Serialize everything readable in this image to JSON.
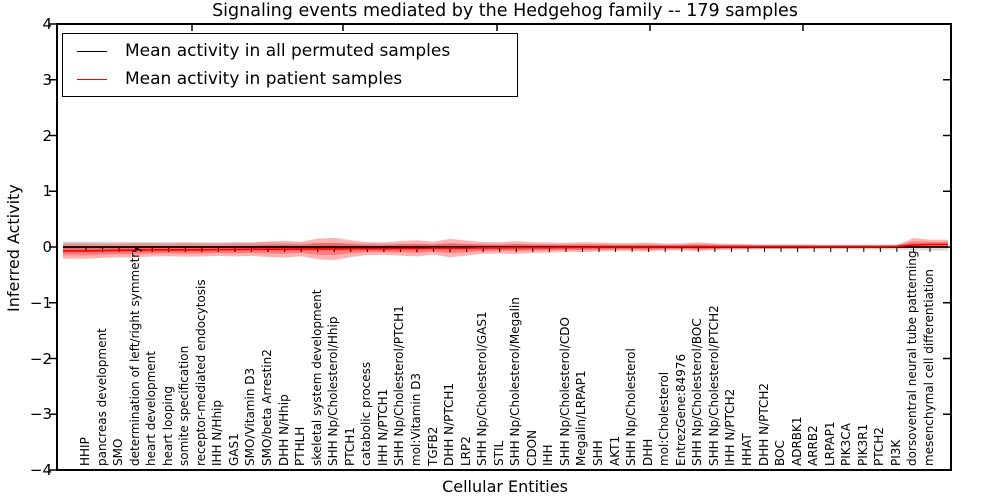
{
  "chart_data": {
    "type": "line",
    "title": "Signaling events mediated by the Hedgehog family -- 179 samples",
    "xlabel": "Cellular Entities",
    "ylabel": "Inferred Activity",
    "ylim": [
      -4,
      4
    ],
    "ytick_labels": [
      "4",
      "3",
      "2",
      "1",
      "0",
      "−1",
      "−2",
      "−3",
      "−4"
    ],
    "grid": false,
    "legend_position": "upper left",
    "sample_count": "179 samples",
    "categories": [
      "HHIP",
      "pancreas development",
      "SMO",
      "determination of left/right symmetry",
      "heart development",
      "heart looping",
      "somite specification",
      "receptor-mediated endocytosis",
      "IHH N/Hhip",
      "GAS1",
      "SMO/Vitamin D3",
      "SMO/beta Arrestin2",
      "DHH N/Hhip",
      "PTHLH",
      "skeletal system development",
      "SHH Np/Cholesterol/Hhip",
      "PTCH1",
      "catabolic process",
      "IHH N/PTCH1",
      "SHH Np/Cholesterol/PTCH1",
      "mol:Vitamin D3",
      "TGFB2",
      "DHH N/PTCH1",
      "LRP2",
      "SHH Np/Cholesterol/GAS1",
      "STIL",
      "SHH Np/Cholesterol/Megalin",
      "CDON",
      "IHH",
      "SHH Np/Cholesterol/CDO",
      "Megalin/LRPAP1",
      "SHH",
      "AKT1",
      "SHH Np/Cholesterol",
      "DHH",
      "mol:Cholesterol",
      "EntrezGene:84976",
      "SHH Np/Cholesterol/BOC",
      "SHH Np/Cholesterol/PTCH2",
      "IHH N/PTCH2",
      "HHAT",
      "DHH N/PTCH2",
      "BOC",
      "ADRBK1",
      "ARRB2",
      "LRPAP1",
      "PIK3CA",
      "PIK3R1",
      "PTCH2",
      "PI3K",
      "dorsoventral neural tube patterning",
      "mesenchymal cell differentiation"
    ],
    "series": [
      {
        "name": "Mean activity in all permuted samples",
        "color": "#000000",
        "values": [
          0,
          0,
          0,
          0,
          0,
          0,
          0,
          0,
          0,
          0,
          0,
          0,
          0,
          0,
          0,
          0,
          0,
          0,
          0,
          0,
          0,
          0,
          0,
          0,
          0,
          0,
          0,
          0,
          0,
          0,
          0,
          0,
          0,
          0,
          0,
          0,
          0,
          0,
          0,
          0,
          0,
          0,
          0,
          0,
          0,
          0,
          0,
          0,
          0,
          0,
          0,
          0
        ]
      },
      {
        "name": "Mean activity in patient samples",
        "color": "#ff0000",
        "values": [
          -0.07,
          -0.065,
          -0.06,
          -0.055,
          -0.05,
          -0.05,
          -0.05,
          -0.05,
          -0.045,
          -0.045,
          -0.04,
          -0.04,
          -0.04,
          -0.035,
          -0.035,
          -0.035,
          -0.03,
          -0.03,
          -0.03,
          -0.025,
          -0.025,
          -0.02,
          -0.02,
          -0.02,
          -0.015,
          -0.015,
          -0.01,
          -0.01,
          -0.01,
          -0.005,
          -0.005,
          0,
          0,
          0,
          0,
          0,
          0.005,
          0.005,
          0.005,
          0.005,
          0.005,
          0.005,
          0.005,
          0.005,
          0.005,
          0.005,
          0.005,
          0.005,
          0.005,
          0.01,
          0.035,
          0.045
        ]
      }
    ],
    "bands": [
      {
        "name": "permuted samples range",
        "color": "rgba(0,0,0,0.14)",
        "upper": [
          0.1,
          0.098,
          0.096,
          0.094,
          0.092,
          0.09,
          0.088,
          0.086,
          0.084,
          0.082,
          0.08,
          0.078,
          0.076,
          0.074,
          0.072,
          0.07,
          0.068,
          0.066,
          0.064,
          0.062,
          0.06,
          0.058,
          0.057,
          0.056,
          0.055,
          0.054,
          0.053,
          0.052,
          0.051,
          0.05,
          0.049,
          0.048,
          0.047,
          0.046,
          0.045,
          0.044,
          0.043,
          0.043,
          0.042,
          0.042,
          0.041,
          0.041,
          0.04,
          0.04,
          0.04,
          0.04,
          0.042,
          0.044,
          0.046,
          0.05,
          0.055,
          0.065
        ],
        "lower": [
          -0.1,
          -0.098,
          -0.096,
          -0.094,
          -0.092,
          -0.09,
          -0.088,
          -0.086,
          -0.084,
          -0.082,
          -0.08,
          -0.078,
          -0.076,
          -0.074,
          -0.072,
          -0.07,
          -0.068,
          -0.066,
          -0.064,
          -0.062,
          -0.06,
          -0.058,
          -0.057,
          -0.056,
          -0.055,
          -0.054,
          -0.053,
          -0.052,
          -0.051,
          -0.05,
          -0.049,
          -0.048,
          -0.047,
          -0.046,
          -0.045,
          -0.044,
          -0.043,
          -0.043,
          -0.042,
          -0.042,
          -0.041,
          -0.041,
          -0.04,
          -0.04,
          -0.04,
          -0.04,
          -0.042,
          -0.044,
          -0.046,
          -0.05,
          -0.055,
          -0.065
        ]
      },
      {
        "name": "patient samples range",
        "color": "rgba(255,0,0,0.30)",
        "upper": [
          0.07,
          0.065,
          0.065,
          0.075,
          0.07,
          0.065,
          0.075,
          0.07,
          0.07,
          0.08,
          0.08,
          0.1,
          0.11,
          0.095,
          0.15,
          0.165,
          0.12,
          0.085,
          0.08,
          0.105,
          0.12,
          0.095,
          0.145,
          0.115,
          0.09,
          0.085,
          0.105,
          0.085,
          0.08,
          0.075,
          0.085,
          0.08,
          0.07,
          0.07,
          0.08,
          0.06,
          0.065,
          0.085,
          0.065,
          0.055,
          0.05,
          0.045,
          0.045,
          0.045,
          0.04,
          0.035,
          0.035,
          0.035,
          0.035,
          0.035,
          0.16,
          0.13
        ],
        "lower": [
          -0.21,
          -0.195,
          -0.185,
          -0.185,
          -0.17,
          -0.165,
          -0.175,
          -0.17,
          -0.16,
          -0.17,
          -0.16,
          -0.18,
          -0.19,
          -0.165,
          -0.22,
          -0.235,
          -0.18,
          -0.145,
          -0.14,
          -0.155,
          -0.17,
          -0.135,
          -0.185,
          -0.155,
          -0.12,
          -0.115,
          -0.125,
          -0.105,
          -0.1,
          -0.085,
          -0.095,
          -0.08,
          -0.07,
          -0.07,
          -0.08,
          -0.06,
          -0.055,
          -0.075,
          -0.055,
          -0.045,
          -0.04,
          -0.035,
          -0.035,
          -0.035,
          -0.03,
          -0.025,
          -0.025,
          -0.025,
          -0.025,
          -0.015,
          0.0,
          0.0
        ]
      }
    ]
  },
  "legend": {
    "items": [
      {
        "label": "Mean activity in all permuted samples",
        "color": "#000000"
      },
      {
        "label": "Mean activity in patient samples",
        "color": "#ff0000"
      }
    ]
  }
}
